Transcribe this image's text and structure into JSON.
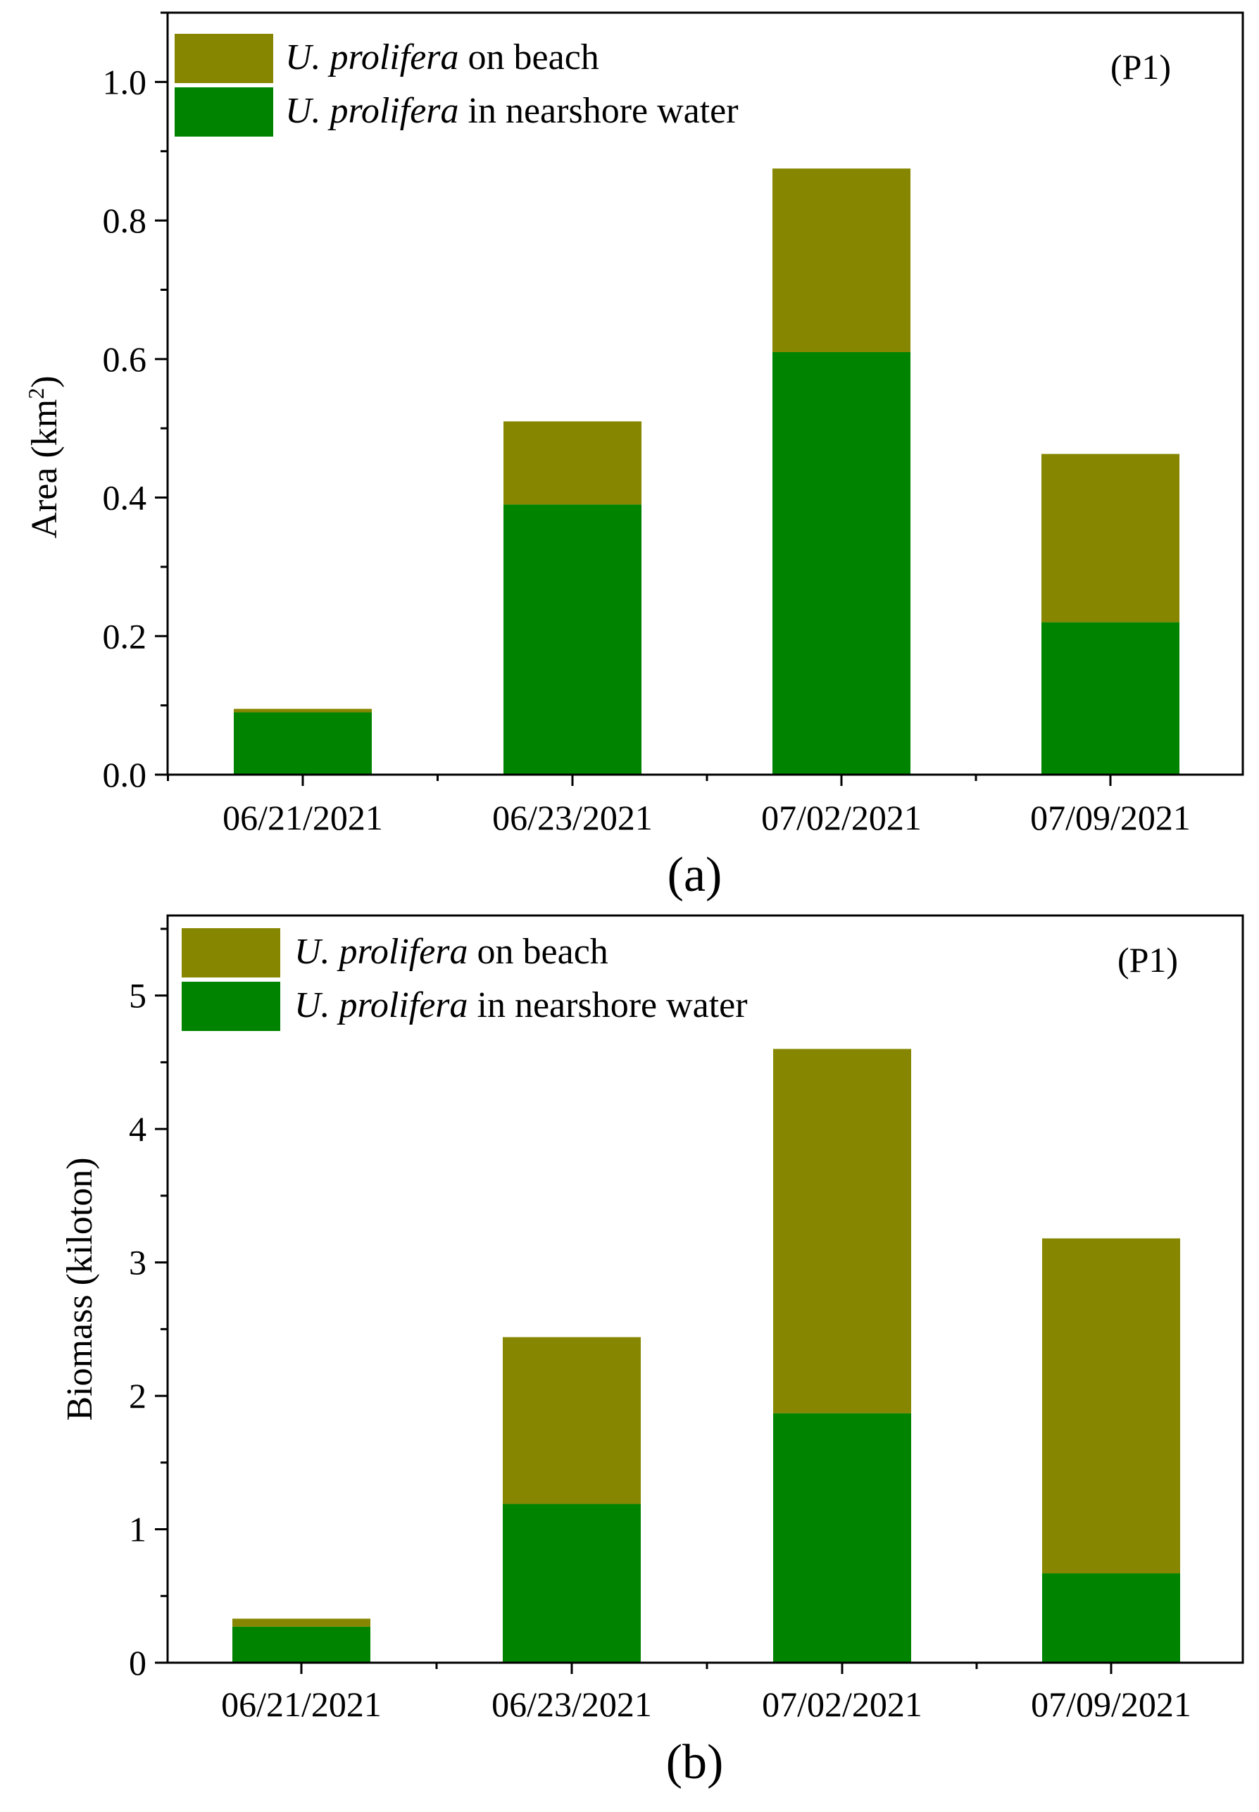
{
  "colors": {
    "beach": "#868600",
    "water": "#008400",
    "axis": "#000000"
  },
  "legend": {
    "species": "U. prolifera",
    "beach_suffix": " on beach",
    "water_suffix": " in nearshore water"
  },
  "chart_data": [
    {
      "type": "bar",
      "stacked": true,
      "panel_label": "(a)",
      "panel_tag": "(P1)",
      "title": "",
      "xlabel": "",
      "ylabel": "Area (km",
      "ylabel_sup": "2",
      "ylabel_end": ")",
      "ylim": [
        0,
        1.1
      ],
      "yticks": [
        0,
        0.2,
        0.4,
        0.6,
        0.8,
        1.0
      ],
      "ytick_labels": [
        "0.0",
        "0.2",
        "0.4",
        "0.6",
        "0.8",
        "1.0"
      ],
      "categories": [
        "06/21/2021",
        "06/23/2021",
        "07/02/2021",
        "07/09/2021"
      ],
      "series": [
        {
          "name": "U. prolifera in nearshore water",
          "key": "water",
          "values": [
            0.09,
            0.39,
            0.61,
            0.22
          ]
        },
        {
          "name": "U. prolifera on beach",
          "key": "beach",
          "values": [
            0.005,
            0.12,
            0.265,
            0.243
          ]
        }
      ],
      "legend_position": "top-left"
    },
    {
      "type": "bar",
      "stacked": true,
      "panel_label": "(b)",
      "panel_tag": "(P1)",
      "title": "",
      "xlabel": "",
      "ylabel": "Biomass (kiloton)",
      "ylim": [
        0,
        5.6
      ],
      "yticks": [
        0,
        1,
        2,
        3,
        4,
        5
      ],
      "ytick_labels": [
        "0",
        "1",
        "2",
        "3",
        "4",
        "5"
      ],
      "categories": [
        "06/21/2021",
        "06/23/2021",
        "07/02/2021",
        "07/09/2021"
      ],
      "series": [
        {
          "name": "U. prolifera in nearshore water",
          "key": "water",
          "values": [
            0.27,
            1.19,
            1.87,
            0.67
          ]
        },
        {
          "name": "U. prolifera on beach",
          "key": "beach",
          "values": [
            0.06,
            1.25,
            2.73,
            2.51
          ]
        }
      ],
      "legend_position": "top-left"
    }
  ]
}
